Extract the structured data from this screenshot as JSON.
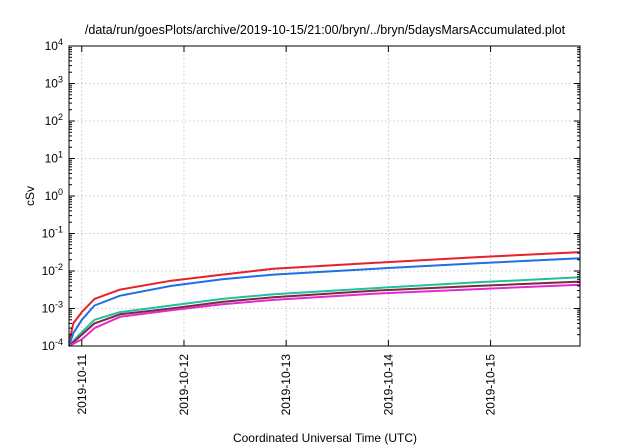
{
  "chart_data": {
    "type": "line",
    "title": "/data/run/goesPlots/archive/2019-10-15/21:00/bryn/../bryn/5daysMarsAccumulated.plot",
    "xlabel": "Coordinated Universal Time (UTC)",
    "ylabel": "cSv",
    "x_range": [
      "2019-10-10T21:00",
      "2019-10-15T21:00"
    ],
    "x_ticks": [
      "2019-10-11",
      "2019-10-12",
      "2019-10-13",
      "2019-10-14",
      "2019-10-15"
    ],
    "y_scale": "log",
    "ylim": [
      0.0001,
      10000
    ],
    "y_ticks": [
      {
        "base": "10",
        "exp": "-4"
      },
      {
        "base": "10",
        "exp": "-3"
      },
      {
        "base": "10",
        "exp": "-2"
      },
      {
        "base": "10",
        "exp": "-1"
      },
      {
        "base": "10",
        "exp": "0"
      },
      {
        "base": "10",
        "exp": "1"
      },
      {
        "base": "10",
        "exp": "2"
      },
      {
        "base": "10",
        "exp": "3"
      },
      {
        "base": "10",
        "exp": "4"
      }
    ],
    "grid": true,
    "legend": "none",
    "series": [
      {
        "color": "#e8202a",
        "points": [
          [
            "2019-10-10T21:00",
            0.00012
          ],
          [
            "2019-10-10T22:00",
            0.0004
          ],
          [
            "2019-10-11T00:00",
            0.0008
          ],
          [
            "2019-10-11T03:00",
            0.0018
          ],
          [
            "2019-10-11T09:00",
            0.0032
          ],
          [
            "2019-10-11T21:00",
            0.0055
          ],
          [
            "2019-10-12T09:00",
            0.008
          ],
          [
            "2019-10-12T21:00",
            0.0115
          ],
          [
            "2019-10-13T21:00",
            0.0165
          ],
          [
            "2019-10-14T21:00",
            0.0235
          ],
          [
            "2019-10-15T21:00",
            0.032
          ]
        ]
      },
      {
        "color": "#1f6fe6",
        "points": [
          [
            "2019-10-10T21:00",
            0.0001
          ],
          [
            "2019-10-10T22:00",
            0.00022
          ],
          [
            "2019-10-11T00:00",
            0.0005
          ],
          [
            "2019-10-11T03:00",
            0.0012
          ],
          [
            "2019-10-11T09:00",
            0.0022
          ],
          [
            "2019-10-11T21:00",
            0.004
          ],
          [
            "2019-10-12T09:00",
            0.006
          ],
          [
            "2019-10-12T21:00",
            0.008
          ],
          [
            "2019-10-13T21:00",
            0.0115
          ],
          [
            "2019-10-14T21:00",
            0.016
          ],
          [
            "2019-10-15T21:00",
            0.022
          ]
        ]
      },
      {
        "color": "#20c0a0",
        "points": [
          [
            "2019-10-10T21:00",
            0.0001
          ],
          [
            "2019-10-10T23:00",
            0.00018
          ],
          [
            "2019-10-11T03:00",
            0.0005
          ],
          [
            "2019-10-11T09:00",
            0.0008
          ],
          [
            "2019-10-11T21:00",
            0.0012
          ],
          [
            "2019-10-12T09:00",
            0.0018
          ],
          [
            "2019-10-12T21:00",
            0.0024
          ],
          [
            "2019-10-13T21:00",
            0.0035
          ],
          [
            "2019-10-14T21:00",
            0.005
          ],
          [
            "2019-10-15T21:00",
            0.0068
          ]
        ]
      },
      {
        "color": "#7a2a3a",
        "points": [
          [
            "2019-10-10T21:00",
            0.0001
          ],
          [
            "2019-10-11T00:00",
            0.0002
          ],
          [
            "2019-10-11T03:00",
            0.0004
          ],
          [
            "2019-10-11T09:00",
            0.0007
          ],
          [
            "2019-10-11T21:00",
            0.001
          ],
          [
            "2019-10-12T09:00",
            0.0015
          ],
          [
            "2019-10-12T21:00",
            0.002
          ],
          [
            "2019-10-13T21:00",
            0.003
          ],
          [
            "2019-10-14T21:00",
            0.004
          ],
          [
            "2019-10-15T21:00",
            0.0052
          ]
        ]
      },
      {
        "color": "#e22ad0",
        "points": [
          [
            "2019-10-10T21:00",
            0.0001
          ],
          [
            "2019-10-11T00:00",
            0.00015
          ],
          [
            "2019-10-11T03:00",
            0.0003
          ],
          [
            "2019-10-11T09:00",
            0.0006
          ],
          [
            "2019-10-11T21:00",
            0.0009
          ],
          [
            "2019-10-12T09:00",
            0.0013
          ],
          [
            "2019-10-12T21:00",
            0.0017
          ],
          [
            "2019-10-13T21:00",
            0.0025
          ],
          [
            "2019-10-14T21:00",
            0.0033
          ],
          [
            "2019-10-15T21:00",
            0.0043
          ]
        ]
      }
    ]
  }
}
